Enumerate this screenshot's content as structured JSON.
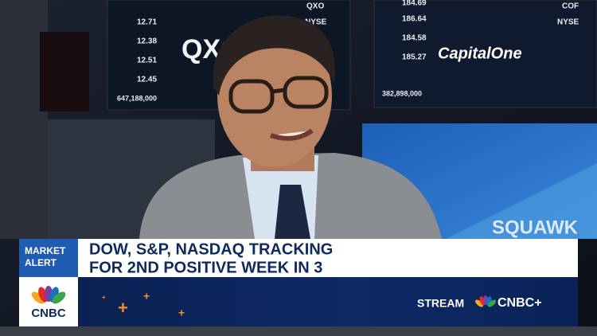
{
  "screens": {
    "left": {
      "ticker": "QXO",
      "exchange": "NYSE",
      "prices": [
        "12.71",
        "12.38",
        "12.51",
        "12.45"
      ],
      "volume": "647,188,000",
      "logo": "QXO"
    },
    "right": {
      "ticker": "COF",
      "exchange": "NYSE",
      "prices": [
        "184.69",
        "186.64",
        "184.58",
        "185.27"
      ],
      "volume": "382,898,000",
      "logo": "CapitalOne"
    }
  },
  "set": {
    "show": "SQUAWK"
  },
  "lower_third": {
    "badge": [
      "MARKET",
      "ALERT"
    ],
    "headline": [
      "DOW, S&P, NASDAQ TRACKING",
      "FOR 2ND POSITIVE WEEK IN 3"
    ],
    "network": "CNBC",
    "stream_label": "STREAM",
    "stream_brand": "CNBC+"
  }
}
